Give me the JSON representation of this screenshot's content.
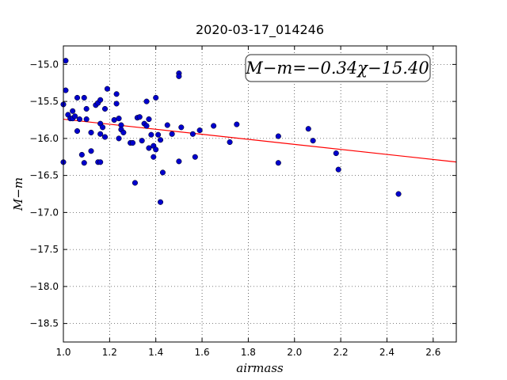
{
  "chart_data": {
    "type": "scatter",
    "title": "2020-03-17_014246",
    "xlabel": "airmass",
    "ylabel": "M−m",
    "xlim": [
      1.0,
      2.7
    ],
    "ylim": [
      -18.75,
      -14.75
    ],
    "y_inverted": true,
    "xticks": [
      1.0,
      1.2,
      1.4,
      1.6,
      1.8,
      2.0,
      2.2,
      2.4,
      2.6
    ],
    "xtick_labels": [
      "1.0",
      "1.2",
      "1.4",
      "1.6",
      "1.8",
      "2.0",
      "2.2",
      "2.4",
      "2.6"
    ],
    "yticks": [
      -15.0,
      -15.5,
      -16.0,
      -16.5,
      -17.0,
      -17.5,
      -18.0,
      -18.5
    ],
    "ytick_labels": [
      "−15.0",
      "−15.5",
      "−16.0",
      "−16.5",
      "−17.0",
      "−17.5",
      "−18.0",
      "−18.5"
    ],
    "grid": true,
    "annotation": "M−m=−0.34χ−15.40",
    "fit_line": {
      "slope": -0.34,
      "intercept": -15.4,
      "color": "#ff0000"
    },
    "point_color": "#0000cd",
    "points": [
      [
        1.0,
        -15.54
      ],
      [
        1.0,
        -16.32
      ],
      [
        1.01,
        -14.95
      ],
      [
        1.01,
        -15.35
      ],
      [
        1.02,
        -15.68
      ],
      [
        1.03,
        -15.73
      ],
      [
        1.04,
        -15.63
      ],
      [
        1.04,
        -15.73
      ],
      [
        1.05,
        -15.7
      ],
      [
        1.06,
        -15.45
      ],
      [
        1.06,
        -15.9
      ],
      [
        1.07,
        -15.74
      ],
      [
        1.08,
        -16.22
      ],
      [
        1.09,
        -16.33
      ],
      [
        1.09,
        -15.45
      ],
      [
        1.1,
        -15.6
      ],
      [
        1.1,
        -15.74
      ],
      [
        1.12,
        -15.92
      ],
      [
        1.12,
        -16.17
      ],
      [
        1.14,
        -15.55
      ],
      [
        1.15,
        -15.52
      ],
      [
        1.15,
        -16.32
      ],
      [
        1.16,
        -15.48
      ],
      [
        1.16,
        -16.32
      ],
      [
        1.16,
        -15.8
      ],
      [
        1.16,
        -15.94
      ],
      [
        1.17,
        -15.85
      ],
      [
        1.18,
        -15.98
      ],
      [
        1.18,
        -15.6
      ],
      [
        1.19,
        -15.33
      ],
      [
        1.22,
        -15.75
      ],
      [
        1.23,
        -15.4
      ],
      [
        1.23,
        -15.53
      ],
      [
        1.24,
        -16.0
      ],
      [
        1.24,
        -15.73
      ],
      [
        1.25,
        -15.82
      ],
      [
        1.25,
        -15.88
      ],
      [
        1.26,
        -15.92
      ],
      [
        1.29,
        -16.06
      ],
      [
        1.3,
        -16.06
      ],
      [
        1.31,
        -16.6
      ],
      [
        1.32,
        -15.72
      ],
      [
        1.33,
        -15.71
      ],
      [
        1.34,
        -16.03
      ],
      [
        1.35,
        -15.8
      ],
      [
        1.36,
        -15.83
      ],
      [
        1.36,
        -15.5
      ],
      [
        1.37,
        -15.74
      ],
      [
        1.37,
        -16.13
      ],
      [
        1.38,
        -15.95
      ],
      [
        1.39,
        -16.1
      ],
      [
        1.39,
        -16.25
      ],
      [
        1.4,
        -15.45
      ],
      [
        1.4,
        -16.15
      ],
      [
        1.41,
        -15.95
      ],
      [
        1.42,
        -16.86
      ],
      [
        1.42,
        -16.02
      ],
      [
        1.43,
        -16.46
      ],
      [
        1.45,
        -15.82
      ],
      [
        1.47,
        -15.94
      ],
      [
        1.5,
        -16.31
      ],
      [
        1.5,
        -15.12
      ],
      [
        1.5,
        -15.16
      ],
      [
        1.51,
        -15.85
      ],
      [
        1.56,
        -15.94
      ],
      [
        1.57,
        -16.25
      ],
      [
        1.59,
        -15.89
      ],
      [
        1.65,
        -15.83
      ],
      [
        1.72,
        -16.05
      ],
      [
        1.75,
        -15.81
      ],
      [
        1.89,
        -14.95
      ],
      [
        1.93,
        -15.97
      ],
      [
        1.93,
        -16.33
      ],
      [
        2.06,
        -15.87
      ],
      [
        2.08,
        -16.03
      ],
      [
        2.18,
        -16.2
      ],
      [
        2.19,
        -16.42
      ],
      [
        2.45,
        -16.75
      ]
    ]
  }
}
